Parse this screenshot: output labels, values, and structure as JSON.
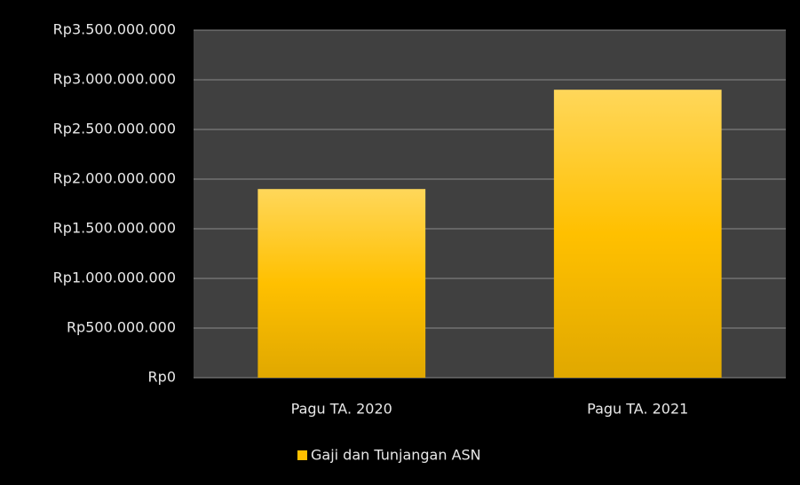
{
  "chart_data": {
    "type": "bar",
    "categories": [
      "Pagu TA. 2020",
      "Pagu TA. 2021"
    ],
    "series": [
      {
        "name": "Gaji dan Tunjangan ASN",
        "color": "#ffc000",
        "values": [
          1900000000,
          2900000000
        ]
      }
    ],
    "ylim": [
      0,
      3500000000
    ],
    "yticks": [
      {
        "value": 0,
        "label": "Rp0"
      },
      {
        "value": 500000000,
        "label": "Rp500.000.000"
      },
      {
        "value": 1000000000,
        "label": "Rp1.000.000.000"
      },
      {
        "value": 1500000000,
        "label": "Rp1.500.000.000"
      },
      {
        "value": 2000000000,
        "label": "Rp2.000.000.000"
      },
      {
        "value": 2500000000,
        "label": "Rp2.500.000.000"
      },
      {
        "value": 3000000000,
        "label": "Rp3.000.000.000"
      },
      {
        "value": 3500000000,
        "label": "Rp3.500.000.000"
      }
    ],
    "grid": true,
    "legend": "bottom"
  }
}
